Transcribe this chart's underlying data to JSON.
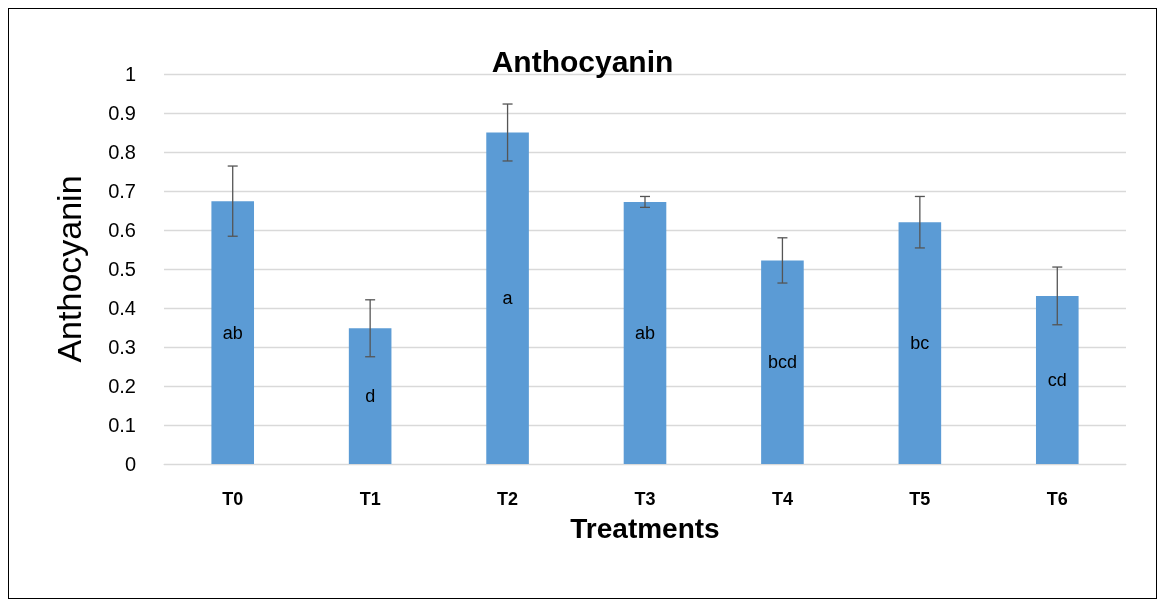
{
  "chart_data": {
    "type": "bar",
    "title": "Anthocyanin",
    "xlabel": "Treatments",
    "ylabel": "Anthocyanin",
    "categories": [
      "T0",
      "T1",
      "T2",
      "T3",
      "T4",
      "T5",
      "T6"
    ],
    "values": [
      0.674,
      0.348,
      0.85,
      0.672,
      0.522,
      0.62,
      0.431
    ],
    "errors": [
      0.09,
      0.073,
      0.073,
      0.014,
      0.058,
      0.066,
      0.074
    ],
    "color": "#5b9bd5",
    "ylim": [
      0,
      1
    ],
    "yticks": [
      0,
      0.1,
      0.2,
      0.3,
      0.4,
      0.5,
      0.6,
      0.7,
      0.8,
      0.9,
      1
    ],
    "grid": "y",
    "annotations": [
      "ab",
      "d",
      "a",
      "ab",
      "bcd",
      "bc",
      "cd"
    ]
  }
}
